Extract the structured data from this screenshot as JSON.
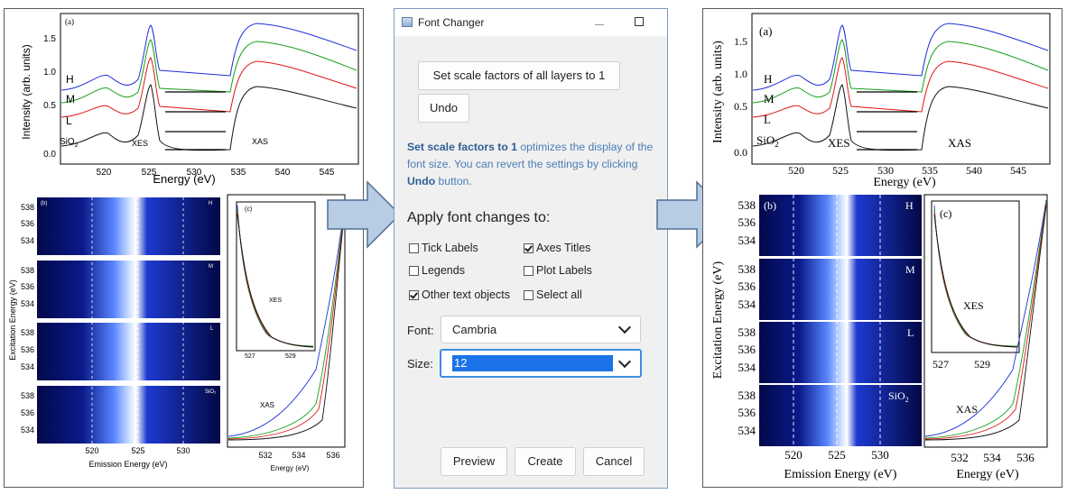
{
  "left_figure": {
    "panel_a": {
      "label": "(a)",
      "ylabel": "Intensity (arb. units)",
      "xlabel": "Energy (eV)",
      "yticks": [
        "0.0",
        "0.5",
        "1.0",
        "1.5"
      ],
      "xticks": [
        "520",
        "525",
        "530",
        "535",
        "540",
        "545"
      ],
      "series_labels": [
        "H",
        "M",
        "L",
        "SiO"
      ],
      "sio_sub": "2",
      "xes_label": "XES",
      "xas_label": "XAS"
    },
    "panel_b": {
      "label": "(b)",
      "ylabel": "Excitation Energy (eV)",
      "xlabel": "Emission Energy (eV)",
      "yticks": [
        "538",
        "536",
        "534"
      ],
      "xticks": [
        "520",
        "525",
        "530"
      ],
      "sub_labels": [
        "H",
        "M",
        "L",
        "SiO₂"
      ]
    },
    "panel_c": {
      "label": "(c)",
      "xlabel": "Energy (eV)",
      "xticks": [
        "532",
        "534",
        "536"
      ],
      "inset_xticks": [
        "527",
        "529"
      ],
      "xes_label": "XES",
      "xas_label": "XAS"
    }
  },
  "right_figure": {
    "panel_a": {
      "label": "(a)",
      "ylabel": "Intensity (arb. units)",
      "xlabel": "Energy (eV)",
      "yticks": [
        "0.0",
        "0.5",
        "1.0",
        "1.5"
      ],
      "xticks": [
        "520",
        "525",
        "530",
        "535",
        "540",
        "545"
      ],
      "series_labels": [
        "H",
        "M",
        "L",
        "SiO"
      ],
      "sio_sub": "2",
      "xes_label": "XES",
      "xas_label": "XAS"
    },
    "panel_b": {
      "label": "(b)",
      "ylabel": "Excitation Energy (eV)",
      "xlabel": "Emission Energy (eV)",
      "yticks": [
        "538",
        "536",
        "534"
      ],
      "xticks": [
        "520",
        "525",
        "530"
      ],
      "sub_labels": [
        "H",
        "M",
        "L",
        "SiO"
      ]
    },
    "panel_c": {
      "label": "(c)",
      "xlabel": "Energy (eV)",
      "xticks": [
        "532",
        "534",
        "536"
      ],
      "inset_xticks": [
        "527",
        "529"
      ],
      "xes_label": "XES",
      "xas_label": "XAS"
    }
  },
  "dialog": {
    "title": "Font Changer",
    "set_scale_button": "Set scale factors of all layers to 1",
    "undo_button": "Undo",
    "info_bold1": "Set scale factors to 1",
    "info_text1": " optimizes the display of the font size. You can revert the settings by clicking ",
    "info_bold2": "Undo",
    "info_text2": " button.",
    "apply_heading": "Apply font changes to:",
    "checkboxes": [
      {
        "label": "Tick Labels",
        "checked": false
      },
      {
        "label": "Axes Titles",
        "checked": true
      },
      {
        "label": "Legends",
        "checked": false
      },
      {
        "label": "Plot Labels",
        "checked": false
      },
      {
        "label": "Other text objects",
        "checked": true
      },
      {
        "label": "Select all",
        "checked": false
      }
    ],
    "font_label": "Font:",
    "font_value": "Cambria",
    "size_label": "Size:",
    "size_value": "12",
    "preview_button": "Preview",
    "create_button": "Create",
    "cancel_button": "Cancel"
  },
  "colors": {
    "H": "#1f2fd8",
    "M": "#16a01a",
    "L": "#e01616",
    "SiO2": "#111111",
    "arrow_fill": "#b8cce4",
    "arrow_stroke": "#4f6e93",
    "accent": "#1a73e8"
  }
}
